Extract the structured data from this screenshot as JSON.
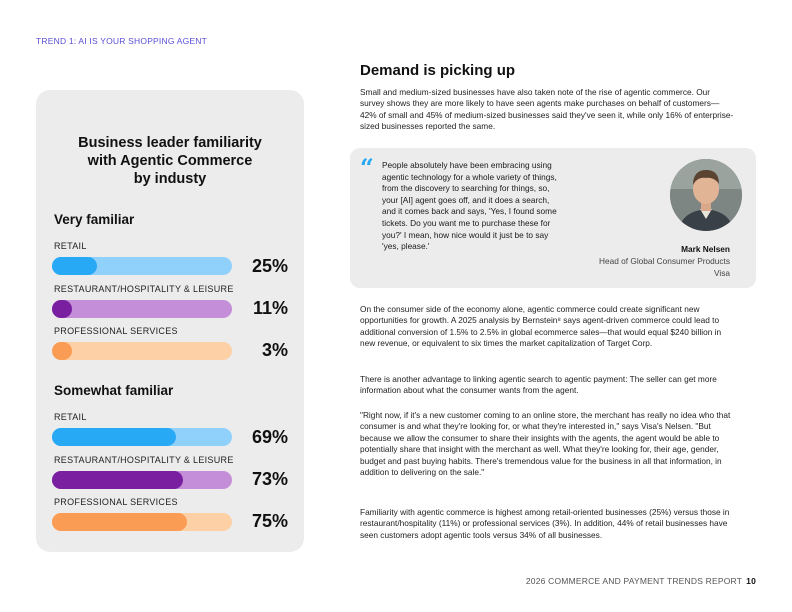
{
  "header": {
    "trend_label": "TREND 1: AI IS YOUR SHOPPING AGENT"
  },
  "card": {
    "title_line1": "Business leader familiarity",
    "title_line2": "with Agentic Commerce",
    "title_line3": "by industy",
    "very_familiar": {
      "heading": "Very familiar",
      "items": [
        {
          "label": "RETAIL",
          "percent": "25%",
          "value": 0.25,
          "color": "blue"
        },
        {
          "label": "RESTAURANT/HOSPITALITY & LEISURE",
          "percent": "11%",
          "value": 0.11,
          "color": "purple"
        },
        {
          "label": "PROFESSIONAL SERVICES",
          "percent": "3%",
          "value": 0.03,
          "color": "orange"
        }
      ]
    },
    "somewhat_familiar": {
      "heading": "Somewhat familiar",
      "items": [
        {
          "label": "RETAIL",
          "percent": "69%",
          "value": 0.69,
          "color": "blue"
        },
        {
          "label": "RESTAURANT/HOSPITALITY & LEISURE",
          "percent": "73%",
          "value": 0.73,
          "color": "purple"
        },
        {
          "label": "PROFESSIONAL SERVICES",
          "percent": "75%",
          "value": 0.75,
          "color": "orange"
        }
      ]
    }
  },
  "article": {
    "heading": "Demand is picking up",
    "para1": "Small and medium-sized businesses have also taken note of the rise of agentic commerce. Our survey shows they are more likely to have seen agents make purchases on behalf of customers—42% of small and 45% of medium-sized businesses said they've seen it, while only 16% of enterprise-sized businesses reported the same.",
    "quote": {
      "text": "People absolutely have been embracing using agentic technology for a whole variety of things, from the discovery to searching for things, so, your [AI] agent goes off, and it does a search, and it comes back and says, 'Yes, I found some tickets. Do you want me to purchase these for you?' I mean, how nice would it just be to say 'yes, please.'",
      "name": "Mark Nelsen",
      "role": "Head of Global Consumer Products",
      "company": "Visa"
    },
    "para2": "On the consumer side of the economy alone, agentic commerce could create significant new opportunities for growth. A 2025 analysis by Bernstein⁸ says agent-driven commerce could lead to additional conversion of 1.5% to 2.5% in global ecommerce sales—that would equal $240 billion in new revenue, or equivalent to six times the market capitalization of Target Corp.",
    "para3": "There is another advantage to linking agentic search to agentic payment: The seller can get more information about what the consumer wants from the agent.",
    "para4": "\"Right now, if it's a new customer coming to an online store, the merchant has really no idea who that consumer is and what they're looking for, or what they're interested in,\" says Visa's Nelsen. \"But because we allow the consumer to share their insights with the agents, the agent would be able to potentially share that insight with the merchant as well. What they're looking for, their age, gender, budget and past buying habits. There's tremendous value for the business in all that information, in addition to delivering on the sale.\"",
    "para5": "Familiarity with agentic commerce is highest among retail-oriented businesses (25%) versus those in restaurant/hospitality (11%) or professional services (3%). In addition, 44% of retail businesses have seen customers adopt agentic tools versus 34% of all businesses."
  },
  "footer": {
    "report_title": "2026 COMMERCE AND PAYMENT TRENDS REPORT",
    "page_number": "10"
  },
  "colors": {
    "accent_purple": "#5b4fd6",
    "blue_fill": "#27a9f5",
    "blue_track": "#90d1fb",
    "purple_fill": "#7a1fa0",
    "purple_track": "#c48ed8",
    "orange_fill": "#fb9c55",
    "orange_track": "#fdd0a6",
    "card_bg": "#ececec"
  },
  "icons": {
    "quote": "quote-icon",
    "portrait": "portrait-icon"
  }
}
